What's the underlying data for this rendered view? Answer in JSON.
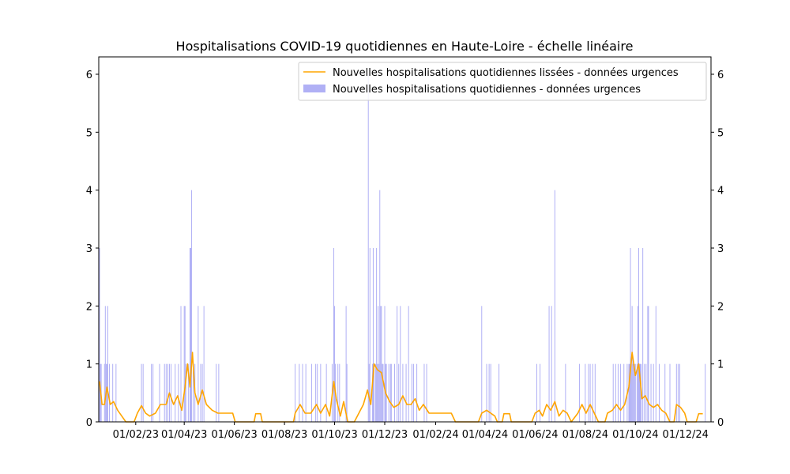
{
  "chart_data": {
    "type": "bar",
    "title": "Hospitalisations COVID-19 quotidiennes en Haute-Loire - échelle linéaire",
    "xlabel": "",
    "ylabel": "",
    "x_range": [
      "2022-12-18",
      "2025-01-01"
    ],
    "ylim": [
      0,
      6.3
    ],
    "y_ticks": [
      0,
      1,
      2,
      3,
      4,
      5,
      6
    ],
    "y_ticks_right": true,
    "x_ticks": [
      {
        "date": "2023-02-01",
        "label": "01/02/23"
      },
      {
        "date": "2023-04-01",
        "label": "01/04/23"
      },
      {
        "date": "2023-06-01",
        "label": "01/06/23"
      },
      {
        "date": "2023-08-01",
        "label": "01/08/23"
      },
      {
        "date": "2023-10-01",
        "label": "01/10/23"
      },
      {
        "date": "2023-12-01",
        "label": "01/12/23"
      },
      {
        "date": "2024-02-01",
        "label": "01/02/24"
      },
      {
        "date": "2024-04-01",
        "label": "01/04/24"
      },
      {
        "date": "2024-06-01",
        "label": "01/06/24"
      },
      {
        "date": "2024-08-01",
        "label": "01/08/24"
      },
      {
        "date": "2024-10-01",
        "label": "01/10/24"
      },
      {
        "date": "2024-12-01",
        "label": "01/12/24"
      }
    ],
    "grid": false,
    "legend_position": "top-right",
    "series": [
      {
        "name": "Nouvelles hospitalisations quotidiennes lissées - données urgences",
        "type": "line",
        "color": "#ffa500",
        "points": [
          [
            "2022-12-19",
            0.7
          ],
          [
            "2022-12-22",
            0.3
          ],
          [
            "2022-12-25",
            0.3
          ],
          [
            "2022-12-28",
            0.6
          ],
          [
            "2023-01-01",
            0.3
          ],
          [
            "2023-01-05",
            0.35
          ],
          [
            "2023-01-10",
            0.2
          ],
          [
            "2023-01-15",
            0.1
          ],
          [
            "2023-01-20",
            0.0
          ],
          [
            "2023-01-30",
            0.0
          ],
          [
            "2023-02-03",
            0.15
          ],
          [
            "2023-02-08",
            0.28
          ],
          [
            "2023-02-13",
            0.15
          ],
          [
            "2023-02-18",
            0.1
          ],
          [
            "2023-02-25",
            0.15
          ],
          [
            "2023-03-03",
            0.3
          ],
          [
            "2023-03-10",
            0.3
          ],
          [
            "2023-03-14",
            0.5
          ],
          [
            "2023-03-19",
            0.3
          ],
          [
            "2023-03-24",
            0.45
          ],
          [
            "2023-03-29",
            0.2
          ],
          [
            "2023-04-02",
            0.6
          ],
          [
            "2023-04-05",
            1.0
          ],
          [
            "2023-04-08",
            0.6
          ],
          [
            "2023-04-11",
            1.2
          ],
          [
            "2023-04-14",
            0.5
          ],
          [
            "2023-04-18",
            0.3
          ],
          [
            "2023-04-23",
            0.55
          ],
          [
            "2023-04-28",
            0.3
          ],
          [
            "2023-05-05",
            0.2
          ],
          [
            "2023-05-12",
            0.15
          ],
          [
            "2023-05-20",
            0.15
          ],
          [
            "2023-05-30",
            0.15
          ],
          [
            "2023-06-02",
            0.0
          ],
          [
            "2023-06-15",
            0.0
          ],
          [
            "2023-06-25",
            0.0
          ],
          [
            "2023-06-27",
            0.14
          ],
          [
            "2023-07-03",
            0.14
          ],
          [
            "2023-07-05",
            0.0
          ],
          [
            "2023-07-15",
            0.0
          ],
          [
            "2023-07-30",
            0.0
          ],
          [
            "2023-08-12",
            0.0
          ],
          [
            "2023-08-14",
            0.15
          ],
          [
            "2023-08-20",
            0.3
          ],
          [
            "2023-08-26",
            0.15
          ],
          [
            "2023-09-02",
            0.15
          ],
          [
            "2023-09-09",
            0.3
          ],
          [
            "2023-09-14",
            0.15
          ],
          [
            "2023-09-20",
            0.3
          ],
          [
            "2023-09-25",
            0.1
          ],
          [
            "2023-09-30",
            0.7
          ],
          [
            "2023-10-03",
            0.4
          ],
          [
            "2023-10-08",
            0.1
          ],
          [
            "2023-10-12",
            0.35
          ],
          [
            "2023-10-17",
            0.0
          ],
          [
            "2023-10-25",
            0.0
          ],
          [
            "2023-11-05",
            0.3
          ],
          [
            "2023-11-10",
            0.55
          ],
          [
            "2023-11-14",
            0.3
          ],
          [
            "2023-11-18",
            1.0
          ],
          [
            "2023-11-22",
            0.9
          ],
          [
            "2023-11-27",
            0.85
          ],
          [
            "2023-12-02",
            0.5
          ],
          [
            "2023-12-07",
            0.35
          ],
          [
            "2023-12-12",
            0.25
          ],
          [
            "2023-12-18",
            0.3
          ],
          [
            "2023-12-23",
            0.45
          ],
          [
            "2023-12-28",
            0.3
          ],
          [
            "2024-01-02",
            0.3
          ],
          [
            "2024-01-07",
            0.4
          ],
          [
            "2024-01-12",
            0.2
          ],
          [
            "2024-01-17",
            0.3
          ],
          [
            "2024-01-24",
            0.15
          ],
          [
            "2024-02-10",
            0.15
          ],
          [
            "2024-02-20",
            0.15
          ],
          [
            "2024-02-25",
            0.0
          ],
          [
            "2024-03-10",
            0.0
          ],
          [
            "2024-03-24",
            0.0
          ],
          [
            "2024-03-28",
            0.15
          ],
          [
            "2024-04-03",
            0.2
          ],
          [
            "2024-04-08",
            0.15
          ],
          [
            "2024-04-13",
            0.1
          ],
          [
            "2024-04-16",
            0.0
          ],
          [
            "2024-04-22",
            0.0
          ],
          [
            "2024-04-24",
            0.14
          ],
          [
            "2024-05-01",
            0.14
          ],
          [
            "2024-05-03",
            0.0
          ],
          [
            "2024-05-20",
            0.0
          ],
          [
            "2024-05-28",
            0.0
          ],
          [
            "2024-06-01",
            0.15
          ],
          [
            "2024-06-06",
            0.2
          ],
          [
            "2024-06-10",
            0.1
          ],
          [
            "2024-06-15",
            0.3
          ],
          [
            "2024-06-20",
            0.2
          ],
          [
            "2024-06-25",
            0.35
          ],
          [
            "2024-06-30",
            0.1
          ],
          [
            "2024-07-05",
            0.2
          ],
          [
            "2024-07-10",
            0.15
          ],
          [
            "2024-07-15",
            0.0
          ],
          [
            "2024-07-23",
            0.15
          ],
          [
            "2024-07-28",
            0.3
          ],
          [
            "2024-08-02",
            0.15
          ],
          [
            "2024-08-07",
            0.3
          ],
          [
            "2024-08-12",
            0.15
          ],
          [
            "2024-08-17",
            0.0
          ],
          [
            "2024-08-25",
            0.0
          ],
          [
            "2024-08-28",
            0.15
          ],
          [
            "2024-09-03",
            0.2
          ],
          [
            "2024-09-08",
            0.3
          ],
          [
            "2024-09-13",
            0.2
          ],
          [
            "2024-09-18",
            0.3
          ],
          [
            "2024-09-23",
            0.6
          ],
          [
            "2024-09-27",
            1.2
          ],
          [
            "2024-10-01",
            0.8
          ],
          [
            "2024-10-05",
            1.0
          ],
          [
            "2024-10-09",
            0.4
          ],
          [
            "2024-10-13",
            0.45
          ],
          [
            "2024-10-18",
            0.3
          ],
          [
            "2024-10-23",
            0.25
          ],
          [
            "2024-10-28",
            0.3
          ],
          [
            "2024-11-02",
            0.2
          ],
          [
            "2024-11-07",
            0.15
          ],
          [
            "2024-11-12",
            0.0
          ],
          [
            "2024-11-17",
            0.0
          ],
          [
            "2024-11-20",
            0.3
          ],
          [
            "2024-11-25",
            0.25
          ],
          [
            "2024-11-30",
            0.15
          ],
          [
            "2024-12-03",
            0.0
          ],
          [
            "2024-12-14",
            0.0
          ],
          [
            "2024-12-17",
            0.14
          ],
          [
            "2024-12-22",
            0.14
          ]
        ]
      },
      {
        "name": "Nouvelles hospitalisations quotidiennes - données urgences",
        "type": "bar",
        "color": "#b0b0f5",
        "points": [
          [
            "2022-12-18",
            3
          ],
          [
            "2022-12-19",
            3
          ],
          [
            "2022-12-20",
            1
          ],
          [
            "2022-12-21",
            1
          ],
          [
            "2022-12-25",
            1
          ],
          [
            "2022-12-26",
            2
          ],
          [
            "2022-12-27",
            1
          ],
          [
            "2022-12-28",
            1
          ],
          [
            "2022-12-29",
            2
          ],
          [
            "2022-12-31",
            1
          ],
          [
            "2023-01-04",
            1
          ],
          [
            "2023-01-08",
            1
          ],
          [
            "2023-02-08",
            1
          ],
          [
            "2023-02-10",
            1
          ],
          [
            "2023-02-20",
            1
          ],
          [
            "2023-02-22",
            1
          ],
          [
            "2023-03-02",
            1
          ],
          [
            "2023-03-08",
            1
          ],
          [
            "2023-03-10",
            1
          ],
          [
            "2023-03-12",
            1
          ],
          [
            "2023-03-14",
            1
          ],
          [
            "2023-03-16",
            1
          ],
          [
            "2023-03-21",
            1
          ],
          [
            "2023-03-25",
            1
          ],
          [
            "2023-03-28",
            2
          ],
          [
            "2023-04-01",
            2
          ],
          [
            "2023-04-02",
            2
          ],
          [
            "2023-04-03",
            1
          ],
          [
            "2023-04-06",
            1
          ],
          [
            "2023-04-08",
            3
          ],
          [
            "2023-04-09",
            3
          ],
          [
            "2023-04-10",
            4
          ],
          [
            "2023-04-12",
            1
          ],
          [
            "2023-04-14",
            1
          ],
          [
            "2023-04-18",
            2
          ],
          [
            "2023-04-21",
            1
          ],
          [
            "2023-04-23",
            1
          ],
          [
            "2023-04-25",
            2
          ],
          [
            "2023-05-10",
            1
          ],
          [
            "2023-05-13",
            1
          ],
          [
            "2023-08-14",
            1
          ],
          [
            "2023-08-19",
            1
          ],
          [
            "2023-08-23",
            1
          ],
          [
            "2023-08-27",
            1
          ],
          [
            "2023-09-03",
            1
          ],
          [
            "2023-09-08",
            1
          ],
          [
            "2023-09-10",
            1
          ],
          [
            "2023-09-14",
            1
          ],
          [
            "2023-09-21",
            1
          ],
          [
            "2023-09-28",
            1
          ],
          [
            "2023-09-30",
            3
          ],
          [
            "2023-10-01",
            2
          ],
          [
            "2023-10-02",
            1
          ],
          [
            "2023-10-05",
            1
          ],
          [
            "2023-10-07",
            1
          ],
          [
            "2023-10-15",
            2
          ],
          [
            "2023-10-16",
            1
          ],
          [
            "2023-11-11",
            6
          ],
          [
            "2023-11-12",
            1
          ],
          [
            "2023-11-13",
            3
          ],
          [
            "2023-11-16",
            1
          ],
          [
            "2023-11-17",
            3
          ],
          [
            "2023-11-18",
            1
          ],
          [
            "2023-11-20",
            1
          ],
          [
            "2023-11-21",
            3
          ],
          [
            "2023-11-22",
            1
          ],
          [
            "2023-11-23",
            2
          ],
          [
            "2023-11-24",
            1
          ],
          [
            "2023-11-25",
            4
          ],
          [
            "2023-11-26",
            2
          ],
          [
            "2023-11-27",
            2
          ],
          [
            "2023-11-28",
            1
          ],
          [
            "2023-11-29",
            1
          ],
          [
            "2023-12-01",
            2
          ],
          [
            "2023-12-02",
            1
          ],
          [
            "2023-12-03",
            1
          ],
          [
            "2023-12-06",
            1
          ],
          [
            "2023-12-08",
            1
          ],
          [
            "2023-12-09",
            1
          ],
          [
            "2023-12-13",
            1
          ],
          [
            "2023-12-16",
            2
          ],
          [
            "2023-12-18",
            1
          ],
          [
            "2023-12-20",
            2
          ],
          [
            "2023-12-23",
            1
          ],
          [
            "2023-12-27",
            1
          ],
          [
            "2023-12-30",
            2
          ],
          [
            "2024-01-03",
            1
          ],
          [
            "2024-01-05",
            1
          ],
          [
            "2024-01-09",
            1
          ],
          [
            "2024-01-18",
            1
          ],
          [
            "2024-01-21",
            1
          ],
          [
            "2024-03-28",
            2
          ],
          [
            "2024-04-03",
            1
          ],
          [
            "2024-04-06",
            1
          ],
          [
            "2024-04-08",
            1
          ],
          [
            "2024-04-18",
            1
          ],
          [
            "2024-06-03",
            1
          ],
          [
            "2024-06-07",
            1
          ],
          [
            "2024-06-18",
            2
          ],
          [
            "2024-06-21",
            2
          ],
          [
            "2024-06-25",
            4
          ],
          [
            "2024-07-08",
            1
          ],
          [
            "2024-07-25",
            1
          ],
          [
            "2024-08-01",
            1
          ],
          [
            "2024-08-05",
            1
          ],
          [
            "2024-08-07",
            1
          ],
          [
            "2024-08-10",
            1
          ],
          [
            "2024-08-13",
            1
          ],
          [
            "2024-09-04",
            1
          ],
          [
            "2024-09-07",
            1
          ],
          [
            "2024-09-10",
            1
          ],
          [
            "2024-09-13",
            1
          ],
          [
            "2024-09-17",
            1
          ],
          [
            "2024-09-21",
            1
          ],
          [
            "2024-09-23",
            1
          ],
          [
            "2024-09-24",
            1
          ],
          [
            "2024-09-25",
            3
          ],
          [
            "2024-09-26",
            1
          ],
          [
            "2024-09-27",
            2
          ],
          [
            "2024-09-28",
            1
          ],
          [
            "2024-09-29",
            1
          ],
          [
            "2024-09-30",
            1
          ],
          [
            "2024-10-01",
            1
          ],
          [
            "2024-10-03",
            1
          ],
          [
            "2024-10-04",
            2
          ],
          [
            "2024-10-05",
            3
          ],
          [
            "2024-10-06",
            1
          ],
          [
            "2024-10-07",
            1
          ],
          [
            "2024-10-08",
            1
          ],
          [
            "2024-10-10",
            3
          ],
          [
            "2024-10-12",
            1
          ],
          [
            "2024-10-14",
            1
          ],
          [
            "2024-10-16",
            2
          ],
          [
            "2024-10-17",
            2
          ],
          [
            "2024-10-20",
            1
          ],
          [
            "2024-10-23",
            1
          ],
          [
            "2024-10-26",
            2
          ],
          [
            "2024-10-30",
            1
          ],
          [
            "2024-11-06",
            1
          ],
          [
            "2024-11-12",
            1
          ],
          [
            "2024-11-20",
            1
          ],
          [
            "2024-11-22",
            1
          ],
          [
            "2024-11-24",
            1
          ],
          [
            "2024-12-25",
            1
          ]
        ]
      }
    ]
  }
}
